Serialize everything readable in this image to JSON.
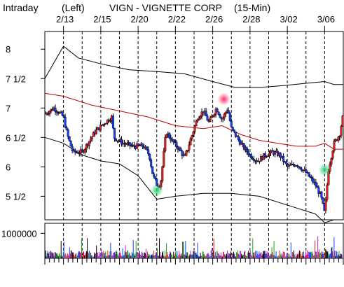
{
  "chart_data": {
    "type": "line",
    "labels": {
      "interval": "Intraday",
      "axis_side": "(Left)",
      "symbol_line": "VIGN - VIGNETTE CORP",
      "frequency": "(15-Min)"
    },
    "x_ticks": [
      "2/13",
      "2/15",
      "2/20",
      "2/22",
      "2/26",
      "2/28",
      "3/02",
      "3/06"
    ],
    "y_ticks": [
      {
        "label": "8",
        "value": 8
      },
      {
        "label": "7 1/2",
        "value": 7.5
      },
      {
        "label": "7",
        "value": 7
      },
      {
        "label": "6 1/2",
        "value": 6.5
      },
      {
        "label": "6",
        "value": 6
      },
      {
        "label": "5 1/2",
        "value": 5.5
      }
    ],
    "ylim": [
      5.1,
      8.3
    ],
    "volume_tick": {
      "label": "1000000",
      "value": 1000000
    },
    "volume_ylim": [
      0,
      1400000
    ],
    "sessions": 16,
    "price_path": [
      [
        0,
        6.9
      ],
      [
        0.5,
        7.0
      ],
      [
        1.0,
        6.85
      ],
      [
        1.2,
        6.55
      ],
      [
        1.5,
        6.25
      ],
      [
        2.0,
        6.25
      ],
      [
        2.3,
        6.4
      ],
      [
        2.7,
        6.6
      ],
      [
        3.2,
        6.75
      ],
      [
        3.6,
        6.85
      ],
      [
        3.7,
        6.5
      ],
      [
        4.2,
        6.4
      ],
      [
        4.7,
        6.35
      ],
      [
        5.0,
        6.35
      ],
      [
        5.3,
        6.35
      ],
      [
        5.6,
        6.2
      ],
      [
        5.8,
        5.85
      ],
      [
        6.0,
        5.7
      ],
      [
        6.2,
        5.7
      ],
      [
        6.5,
        6.6
      ],
      [
        6.8,
        6.45
      ],
      [
        7.2,
        6.3
      ],
      [
        7.5,
        6.15
      ],
      [
        7.8,
        6.45
      ],
      [
        8.2,
        6.85
      ],
      [
        8.5,
        6.95
      ],
      [
        8.8,
        6.75
      ],
      [
        9.2,
        7.0
      ],
      [
        9.5,
        6.8
      ],
      [
        9.8,
        7.0
      ],
      [
        10.0,
        6.65
      ],
      [
        10.3,
        6.5
      ],
      [
        10.6,
        6.35
      ],
      [
        11.0,
        6.2
      ],
      [
        11.4,
        6.1
      ],
      [
        11.8,
        6.2
      ],
      [
        12.2,
        6.25
      ],
      [
        12.6,
        6.2
      ],
      [
        13.0,
        6.0
      ],
      [
        13.5,
        6.05
      ],
      [
        14.0,
        5.9
      ],
      [
        14.5,
        5.7
      ],
      [
        14.8,
        5.5
      ],
      [
        15.0,
        5.2
      ],
      [
        15.2,
        5.95
      ],
      [
        15.5,
        6.4
      ],
      [
        15.8,
        6.55
      ],
      [
        16.0,
        6.9
      ]
    ],
    "bands": {
      "upper": [
        [
          0,
          7.5
        ],
        [
          1.0,
          8.05
        ],
        [
          1.8,
          7.85
        ],
        [
          3.0,
          7.75
        ],
        [
          4.5,
          7.65
        ],
        [
          6.0,
          7.62
        ],
        [
          7.5,
          7.58
        ],
        [
          9.0,
          7.45
        ],
        [
          10.2,
          7.35
        ],
        [
          11.5,
          7.35
        ],
        [
          12.8,
          7.38
        ],
        [
          14.0,
          7.42
        ],
        [
          15.0,
          7.45
        ],
        [
          15.5,
          7.4
        ],
        [
          16.0,
          7.4
        ]
      ],
      "middle": [
        [
          0,
          7.25
        ],
        [
          1.0,
          7.2
        ],
        [
          2.5,
          7.05
        ],
        [
          4.0,
          6.95
        ],
        [
          5.5,
          6.85
        ],
        [
          7.0,
          6.7
        ],
        [
          8.5,
          6.65
        ],
        [
          9.5,
          6.7
        ],
        [
          10.5,
          6.55
        ],
        [
          11.5,
          6.45
        ],
        [
          12.5,
          6.4
        ],
        [
          13.5,
          6.35
        ],
        [
          14.5,
          6.35
        ],
        [
          15.0,
          6.4
        ],
        [
          15.5,
          6.3
        ],
        [
          16.0,
          6.3
        ]
      ],
      "lower": [
        [
          0,
          6.5
        ],
        [
          1.0,
          6.4
        ],
        [
          2.0,
          6.2
        ],
        [
          3.0,
          6.1
        ],
        [
          4.0,
          6.05
        ],
        [
          5.0,
          5.85
        ],
        [
          6.0,
          5.45
        ],
        [
          7.0,
          5.5
        ],
        [
          8.5,
          5.55
        ],
        [
          10.0,
          5.55
        ],
        [
          11.5,
          5.5
        ],
        [
          12.5,
          5.4
        ],
        [
          13.5,
          5.3
        ],
        [
          14.5,
          5.2
        ],
        [
          15.0,
          5.05
        ],
        [
          15.5,
          5.1
        ],
        [
          16.0,
          5.1
        ]
      ]
    },
    "markers": [
      {
        "session": 6.0,
        "price": 5.6,
        "color": "#2ecc71"
      },
      {
        "session": 9.6,
        "price": 7.15,
        "color": "#ff3366"
      },
      {
        "session": 15.0,
        "price": 5.95,
        "color": "#2ecc71"
      }
    ],
    "colors": {
      "up": "#e02020",
      "down": "#1040ff",
      "volume": [
        "#1040ff",
        "#e02020",
        "#20a020",
        "#c020c0",
        "#000000"
      ]
    },
    "grid": true
  }
}
